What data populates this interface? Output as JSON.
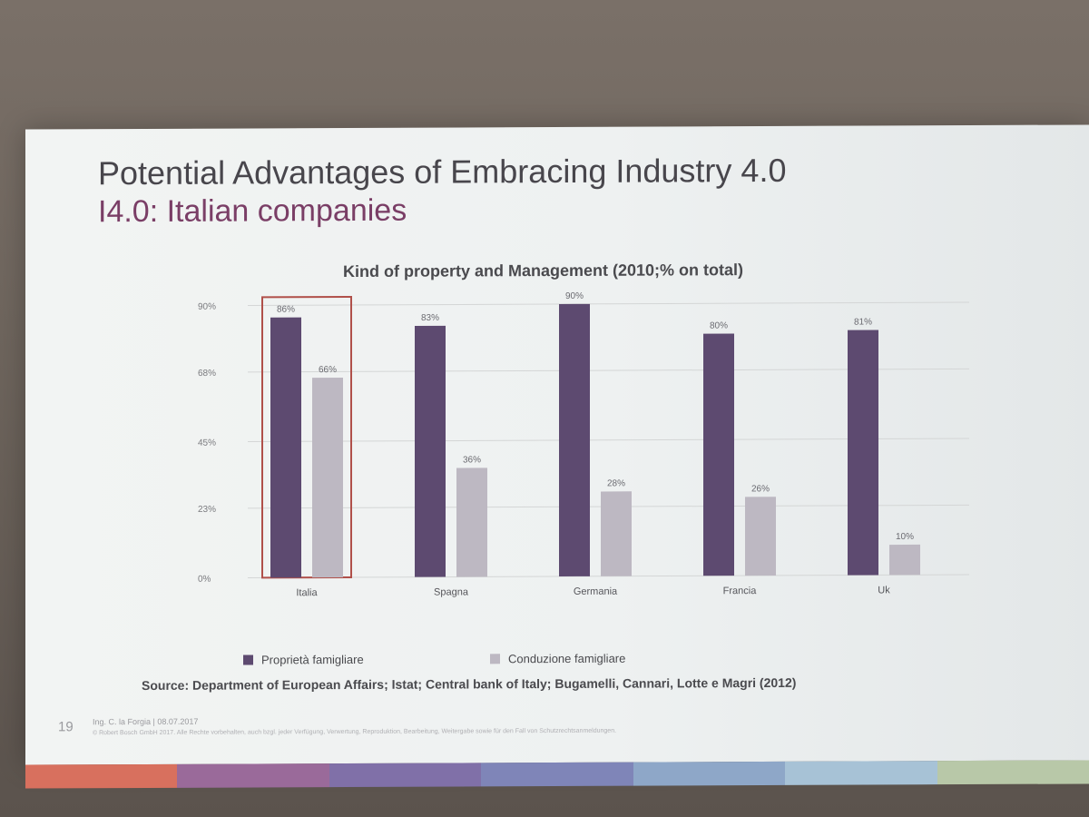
{
  "slide": {
    "title": "Potential Advantages of Embracing Industry 4.0",
    "subtitle": "I4.0: Italian companies",
    "page_number": "19",
    "footer_author": "Ing. C. la Forgia | 08.07.2017",
    "footer_copyright": "© Robert Bosch GmbH 2017. Alle Rechte vorbehalten, auch bzgl. jeder Verfügung, Verwertung, Reproduktion, Bearbeitung, Weitergabe sowie für den Fall von Schutzrechtsanmeldungen."
  },
  "chart_data": {
    "type": "bar",
    "title": "Kind of property and Management (2010;% on total)",
    "categories": [
      "Italia",
      "Spagna",
      "Germania",
      "Francia",
      "Uk"
    ],
    "series": [
      {
        "name": "Proprietà famigliare",
        "values": [
          86,
          83,
          90,
          80,
          81
        ],
        "labels": [
          "86%",
          "83%",
          "90%",
          "80%",
          "81%"
        ]
      },
      {
        "name": "Conduzione famigliare",
        "values": [
          66,
          36,
          28,
          26,
          10
        ],
        "labels": [
          "66%",
          "36%",
          "28%",
          "26%",
          "10%"
        ]
      }
    ],
    "y_ticks": [
      0,
      23,
      45,
      68,
      90
    ],
    "y_tick_labels": [
      "0%",
      "23%",
      "45%",
      "68%",
      "90%"
    ],
    "ylim": [
      0,
      90
    ],
    "grid": true,
    "legend": "bottom",
    "highlighted_category": "Italia",
    "source": "Source: Department of European Affairs; Istat; Central bank of Italy; Bugamelli, Cannari, Lotte e Magri (2012)"
  },
  "colors": {
    "series_1": "#5d4a70",
    "series_2": "#bdb8c2",
    "highlight_box": "#b0504a",
    "title": "#48464c",
    "subtitle": "#7a3e66",
    "gridline": "#d4d6d6",
    "footer_bar": [
      "#d8705e",
      "#9a6a9a",
      "#8070a8",
      "#7f85b8",
      "#8ea7c8",
      "#a7c2d6",
      "#b8c8a8"
    ]
  }
}
